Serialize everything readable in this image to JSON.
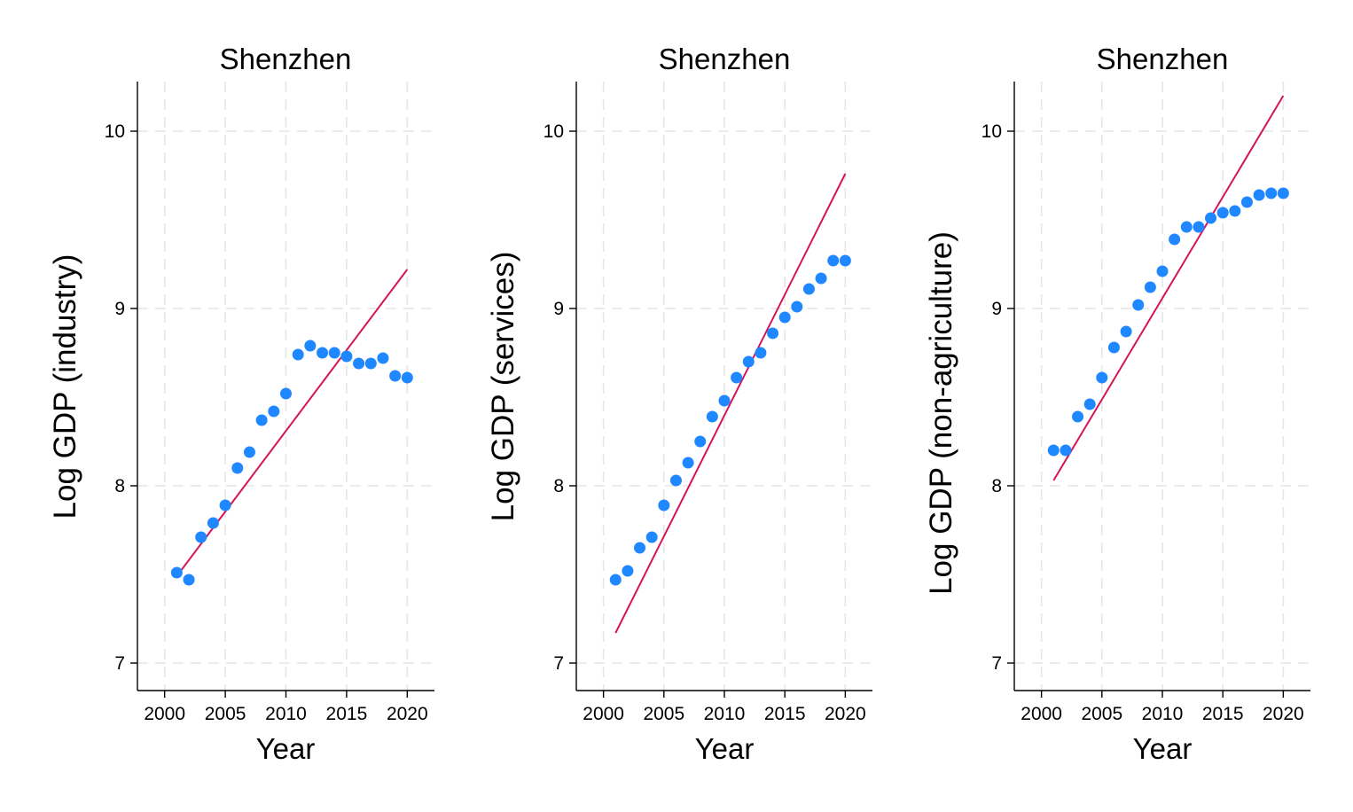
{
  "colors": {
    "points": "#1f87ff",
    "fit_line": "#d4145a",
    "grid": "#e6e6e6"
  },
  "chart_data": [
    {
      "type": "scatter",
      "title": "Shenzhen",
      "xlabel": "Year",
      "ylabel": "Log GDP (industry)",
      "xlim": [
        1999,
        2021
      ],
      "ylim": [
        6.93,
        10.28
      ],
      "xticks": [
        2000,
        2005,
        2010,
        2015,
        2020
      ],
      "yticks": [
        7,
        8,
        9,
        10
      ],
      "grid": true,
      "x": [
        2001,
        2002,
        2003,
        2004,
        2005,
        2006,
        2007,
        2008,
        2009,
        2010,
        2011,
        2012,
        2013,
        2014,
        2015,
        2016,
        2017,
        2018,
        2019,
        2020
      ],
      "y": [
        7.51,
        7.47,
        7.71,
        7.79,
        7.89,
        8.1,
        8.19,
        8.37,
        8.42,
        8.52,
        8.74,
        8.79,
        8.75,
        8.75,
        8.73,
        8.69,
        8.69,
        8.72,
        8.62,
        8.61
      ],
      "fit_line": {
        "x": [
          2001,
          2020
        ],
        "y": [
          7.49,
          9.22
        ]
      }
    },
    {
      "type": "scatter",
      "title": "Shenzhen",
      "xlabel": "Year",
      "ylabel": "Log GDP (services)",
      "xlim": [
        1999,
        2021
      ],
      "ylim": [
        6.93,
        10.28
      ],
      "xticks": [
        2000,
        2005,
        2010,
        2015,
        2020
      ],
      "yticks": [
        7,
        8,
        9,
        10
      ],
      "grid": true,
      "x": [
        2001,
        2002,
        2003,
        2004,
        2005,
        2006,
        2007,
        2008,
        2009,
        2010,
        2011,
        2012,
        2013,
        2014,
        2015,
        2016,
        2017,
        2018,
        2019,
        2020
      ],
      "y": [
        7.47,
        7.52,
        7.65,
        7.71,
        7.89,
        8.03,
        8.13,
        8.25,
        8.39,
        8.48,
        8.61,
        8.7,
        8.75,
        8.86,
        8.95,
        9.01,
        9.11,
        9.17,
        9.27,
        9.27
      ],
      "fit_line": {
        "x": [
          2001,
          2020
        ],
        "y": [
          7.17,
          9.76
        ]
      }
    },
    {
      "type": "scatter",
      "title": "Shenzhen",
      "xlabel": "Year",
      "ylabel": "Log GDP (non-agriculture)",
      "xlim": [
        1999,
        2021
      ],
      "ylim": [
        6.93,
        10.28
      ],
      "xticks": [
        2000,
        2005,
        2010,
        2015,
        2020
      ],
      "yticks": [
        7,
        8,
        9,
        10
      ],
      "grid": true,
      "x": [
        2001,
        2002,
        2003,
        2004,
        2005,
        2006,
        2007,
        2008,
        2009,
        2010,
        2011,
        2012,
        2013,
        2014,
        2015,
        2016,
        2017,
        2018,
        2019,
        2020
      ],
      "y": [
        8.2,
        8.2,
        8.39,
        8.46,
        8.61,
        8.78,
        8.87,
        9.02,
        9.12,
        9.21,
        9.39,
        9.46,
        9.46,
        9.51,
        9.54,
        9.55,
        9.6,
        9.64,
        9.65,
        9.65
      ],
      "fit_line": {
        "x": [
          2001,
          2020
        ],
        "y": [
          8.03,
          10.2
        ]
      }
    }
  ]
}
